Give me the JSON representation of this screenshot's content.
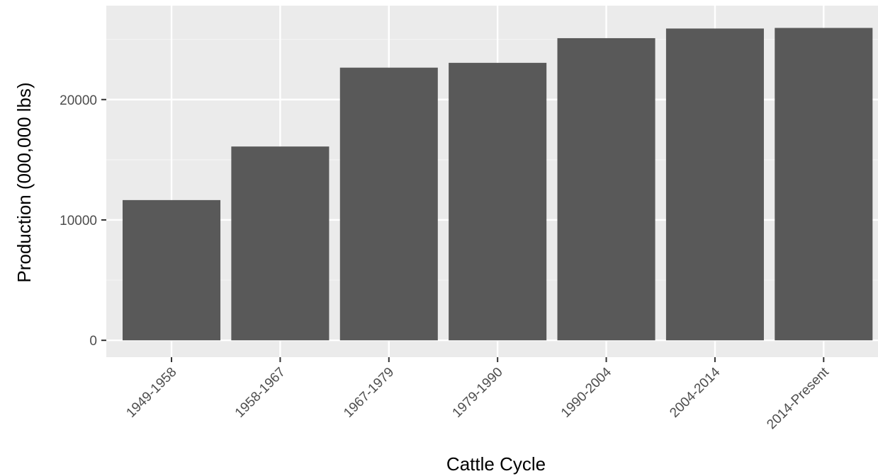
{
  "chart_data": {
    "type": "bar",
    "title": "",
    "xlabel": "Cattle Cycle",
    "ylabel": "Production (000,000 lbs)",
    "categories": [
      "1949-1958",
      "1958-1967",
      "1967-1979",
      "1979-1990",
      "1990-2004",
      "2004-2014",
      "2014-Present"
    ],
    "values": [
      11650,
      16100,
      22650,
      23050,
      25100,
      25900,
      25950
    ],
    "ylim": [
      -1400,
      27800
    ],
    "yticks": [
      0,
      10000,
      20000
    ],
    "ytick_labels": [
      "0",
      "10000",
      "20000"
    ],
    "grid": true,
    "legend": "none",
    "colors": {
      "panel_background": "#ebebeb",
      "grid_major": "#ffffff",
      "grid_minor": "#f4f4f4",
      "bar_fill": "#595959",
      "tick_mark": "#333333",
      "tick_text": "#4d4d4d",
      "title_text": "#000000"
    }
  }
}
